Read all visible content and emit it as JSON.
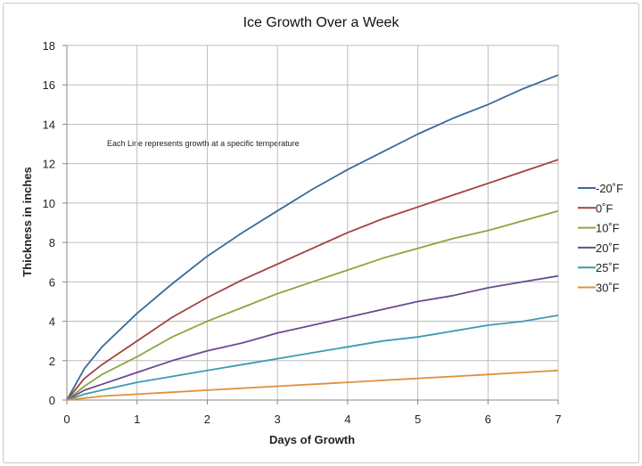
{
  "chart_data": {
    "type": "line",
    "title": "Ice Growth Over a Week",
    "xlabel": "Days of Growth",
    "ylabel": "Thickness in inches",
    "annotation": "Each Line represents growth at a specific temperature",
    "xlim": [
      0,
      7
    ],
    "ylim": [
      0,
      18
    ],
    "x_ticks": [
      0,
      1,
      2,
      3,
      4,
      5,
      6,
      7
    ],
    "y_ticks": [
      0,
      2,
      4,
      6,
      8,
      10,
      12,
      14,
      16,
      18
    ],
    "grid": true,
    "legend_position": "right",
    "x": [
      0,
      0.25,
      0.5,
      1,
      1.5,
      2,
      2.5,
      3,
      3.5,
      4,
      4.5,
      5,
      5.5,
      6,
      6.5,
      7
    ],
    "series": [
      {
        "name": "-20˚F",
        "color": "#3b6a9a",
        "values": [
          0,
          1.6,
          2.7,
          4.4,
          5.9,
          7.3,
          8.5,
          9.6,
          10.7,
          11.7,
          12.6,
          13.5,
          14.3,
          15.0,
          15.8,
          16.5
        ]
      },
      {
        "name": "0˚F",
        "color": "#a0413f",
        "values": [
          0,
          1.1,
          1.8,
          3.0,
          4.2,
          5.2,
          6.1,
          6.9,
          7.7,
          8.5,
          9.2,
          9.8,
          10.4,
          11.0,
          11.6,
          12.2
        ]
      },
      {
        "name": "10˚F",
        "color": "#8ca63e",
        "values": [
          0,
          0.7,
          1.3,
          2.2,
          3.2,
          4.0,
          4.7,
          5.4,
          6.0,
          6.6,
          7.2,
          7.7,
          8.2,
          8.6,
          9.1,
          9.6
        ]
      },
      {
        "name": "20˚F",
        "color": "#6a4b8f",
        "values": [
          0,
          0.5,
          0.8,
          1.4,
          2.0,
          2.5,
          2.9,
          3.4,
          3.8,
          4.2,
          4.6,
          5.0,
          5.3,
          5.7,
          6.0,
          6.3
        ]
      },
      {
        "name": "25˚F",
        "color": "#3c9ab4",
        "values": [
          0,
          0.3,
          0.5,
          0.9,
          1.2,
          1.5,
          1.8,
          2.1,
          2.4,
          2.7,
          3.0,
          3.2,
          3.5,
          3.8,
          4.0,
          4.3
        ]
      },
      {
        "name": "30˚F",
        "color": "#e0913e",
        "values": [
          0,
          0.1,
          0.2,
          0.3,
          0.4,
          0.5,
          0.6,
          0.7,
          0.8,
          0.9,
          1.0,
          1.1,
          1.2,
          1.3,
          1.4,
          1.5
        ]
      }
    ]
  }
}
